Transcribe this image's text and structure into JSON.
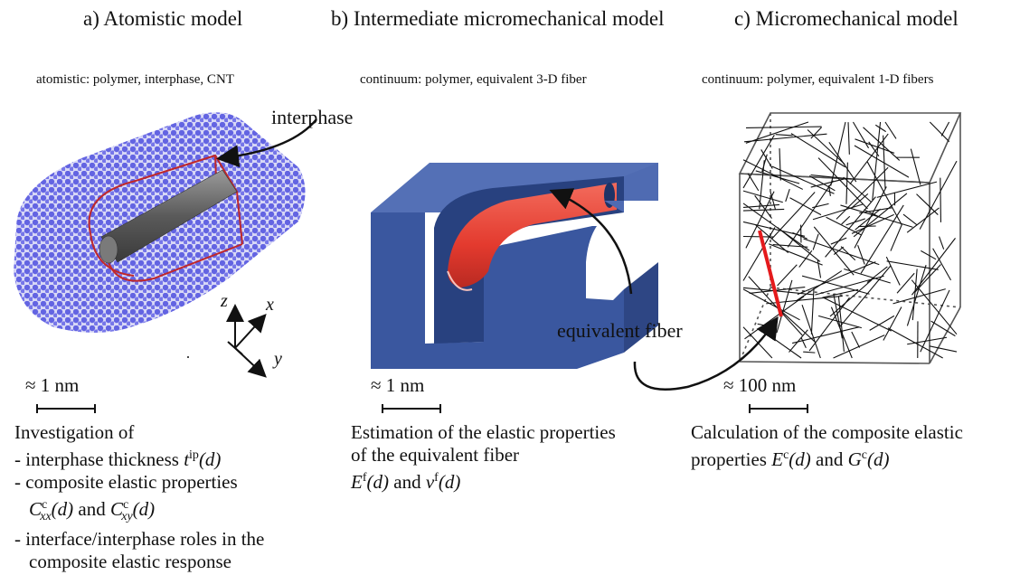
{
  "panels": {
    "a": {
      "title": "a) Atomistic model",
      "subtitle": "atomistic: polymer, interphase, CNT",
      "label": "interphase",
      "scale": "≈ 1 nm",
      "axes": {
        "z": "z",
        "x": "x",
        "y": "y"
      },
      "desc": {
        "line1": "Investigation of",
        "line2_pre": "- interphase thickness ",
        "line2_sym": "t",
        "line2_sup": "ip",
        "line2_arg": "(d)",
        "line3": "- composite elastic properties",
        "line4_sym1": "C",
        "line4_sup1": "c",
        "line4_sub1": "xx",
        "line4_arg1": "(d)",
        "line4_and": " and ",
        "line4_sym2": "C",
        "line4_sup2": "c",
        "line4_sub2": "xy",
        "line4_arg2": "(d)",
        "line5": "- interface/interphase roles in the",
        "line6": "composite elastic response"
      }
    },
    "b": {
      "title": "b) Intermediate micromechanical model",
      "subtitle": "continuum: polymer, equivalent 3-D fiber",
      "label": "equivalent fiber",
      "scale": "≈ 1 nm",
      "desc": {
        "line1": "Estimation of the elastic properties",
        "line2": "of the equivalent fiber",
        "line3_sym1": "E",
        "line3_sup1": "f",
        "line3_arg1": "(d)",
        "line3_and": " and ",
        "line3_sym2": "ν",
        "line3_sup2": "f",
        "line3_arg2": "(d)"
      }
    },
    "c": {
      "title": "c) Micromechanical model",
      "subtitle": "continuum: polymer, equivalent 1-D fibers",
      "scale": "≈ 100 nm",
      "desc": {
        "line1": "Calculation of the composite elastic",
        "line2_pre": "properties ",
        "line2_sym1": "E",
        "line2_sup1": "c",
        "line2_arg1": "(d)",
        "line2_and": " and ",
        "line2_sym2": "G",
        "line2_sup2": "c",
        "line2_arg2": "(d)"
      }
    }
  },
  "colors": {
    "polymer_atoms": "#5b5ce0",
    "interphase_outline": "#c0282a",
    "cnt": "#6e6e6e",
    "matrix_block": "#3f5a9e",
    "fiber": "#e8463a",
    "fibers_1d": "#111111",
    "highlight_fiber": "#e41a1c"
  }
}
